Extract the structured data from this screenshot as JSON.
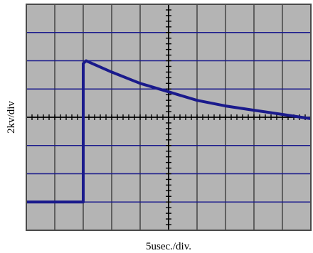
{
  "chart_data": {
    "type": "line",
    "xlabel": "5usec./div.",
    "ylabel": "2kv/div",
    "title": "",
    "x_unit": "div",
    "y_unit": "div",
    "xlim": [
      -5,
      5
    ],
    "ylim": [
      -4,
      4
    ],
    "grid": true,
    "series": [
      {
        "values": [
          {
            "x": -5.0,
            "y": -3.0
          },
          {
            "x": -3.0,
            "y": -3.0
          },
          {
            "x": -3.0,
            "y": 1.9
          },
          {
            "x": -2.9,
            "y": 2.0
          },
          {
            "x": -2.0,
            "y": 1.6
          },
          {
            "x": -1.0,
            "y": 1.2
          },
          {
            "x": 0.0,
            "y": 0.9
          },
          {
            "x": 1.0,
            "y": 0.6
          },
          {
            "x": 2.0,
            "y": 0.4
          },
          {
            "x": 3.0,
            "y": 0.25
          },
          {
            "x": 4.0,
            "y": 0.1
          },
          {
            "x": 5.0,
            "y": -0.05
          }
        ]
      }
    ]
  },
  "colors": {
    "background": "#b4b4b4",
    "gridline": "#1a1a8c",
    "trace": "#1a1a8c",
    "frame": "#4a4a4a",
    "centerline": "#000000"
  }
}
